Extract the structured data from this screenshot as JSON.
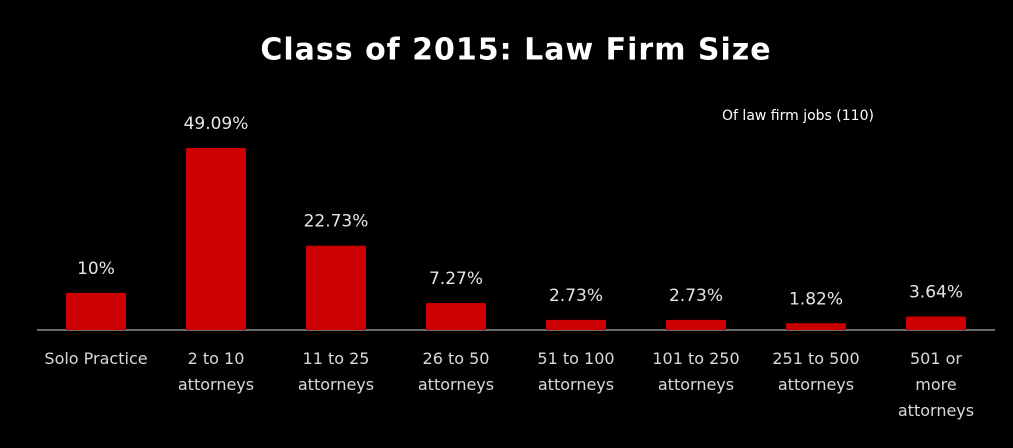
{
  "chart_data": {
    "type": "bar",
    "title": "Class of 2015: Law Firm Size",
    "annotation": "Of law firm jobs (110)",
    "categories": [
      "Solo Practice",
      "2 to 10 attorneys",
      "11 to 25 attorneys",
      "26 to 50 attorneys",
      "51 to 100 attorneys",
      "101 to 250 attorneys",
      "251 to 500 attorneys",
      "501 or more attorneys"
    ],
    "values": [
      10,
      49.09,
      22.73,
      7.27,
      2.73,
      2.73,
      1.82,
      3.64
    ],
    "value_labels": [
      "10%",
      "49.09%",
      "22.73%",
      "7.27%",
      "2.73%",
      "2.73%",
      "1.82%",
      "3.64%"
    ],
    "color": "#cc0000"
  }
}
